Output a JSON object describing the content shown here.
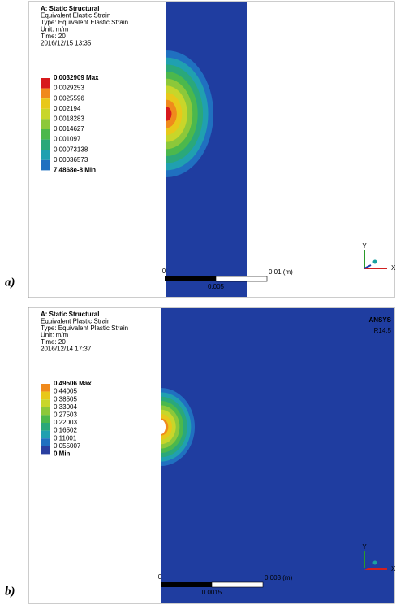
{
  "panels": [
    {
      "label": "a)",
      "header": [
        "A: Static Structural",
        "Equivalent Elastic Strain",
        "Type: Equivalent Elastic Strain",
        "Unit: m/m",
        "Time: 20",
        "2016/12/15 13:35"
      ],
      "legend": [
        "0.0032909 Max",
        "0.0029253",
        "0.0025596",
        "0.002194",
        "0.0018283",
        "0.0014627",
        "0.001097",
        "0.00073138",
        "0.00036573",
        "7.4868e-8 Min"
      ],
      "scale": {
        "zero": "0",
        "end": "0.01 (m)",
        "mid": "0.005"
      },
      "axes": {
        "y": "Y",
        "x": "X"
      }
    },
    {
      "label": "b)",
      "header": [
        "A: Static Structural",
        "Equivalent Plastic Strain",
        "Type: Equivalent Plastic Strain",
        "Unit: m/m",
        "Time: 20",
        "2016/12/14 17:37"
      ],
      "legend": [
        "0.49506 Max",
        "0.44005",
        "0.38505",
        "0.33004",
        "0.27503",
        "0.22003",
        "0.16502",
        "0.11001",
        "0.055007",
        "0 Min"
      ],
      "scale": {
        "zero": "0",
        "end": "0.003 (m)",
        "mid": "0.0015"
      },
      "axes": {
        "y": "Y",
        "x": "X"
      },
      "logo": {
        "name": "ANSYS",
        "version": "R14.5"
      }
    }
  ]
}
